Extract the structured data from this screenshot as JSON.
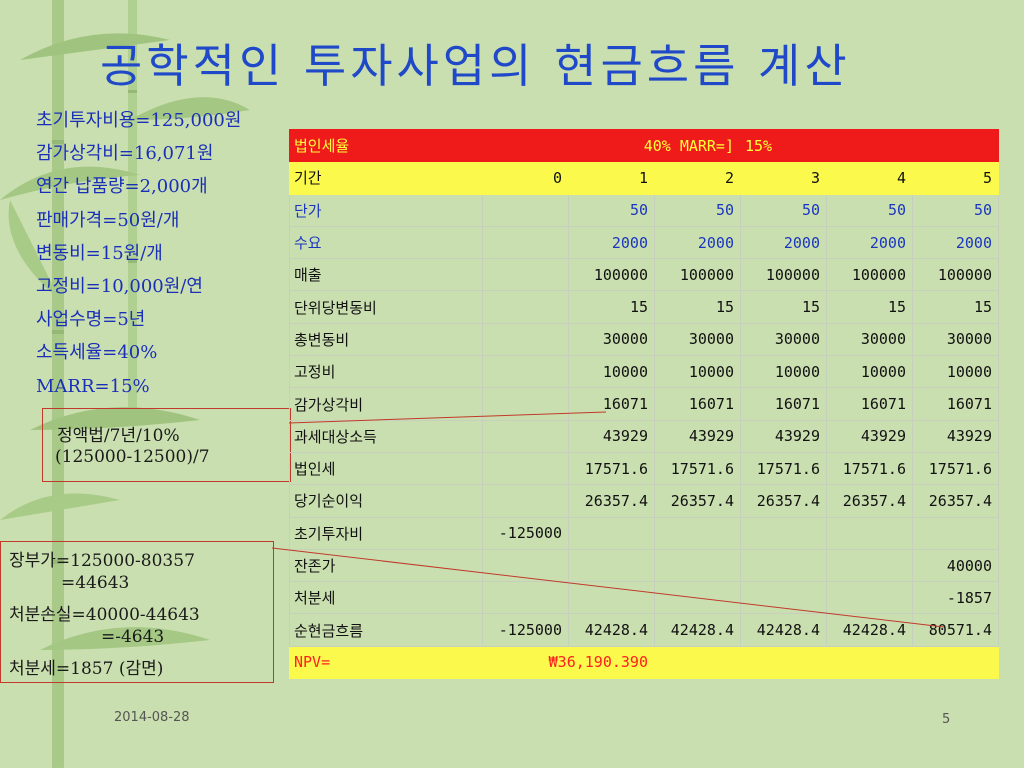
{
  "title": "공학적인 투자사업의 현금흐름 계산",
  "params": [
    "초기투자비용=125,000원",
    "감가상각비=16,071원",
    "연간 납품량=2,000개",
    "판매가격=50원/개",
    "변동비=15원/개",
    "고정비=10,000원/연",
    "사업수명=5년",
    "소득세율=40%",
    "MARR=15%"
  ],
  "note_depreciation": [
    "정액법/7년/10%",
    "(125000-12500)/7"
  ],
  "note_disposal": [
    "장부가=125000-80357",
    "=44643",
    "처분손실=40000-44643",
    "=-4643",
    "처분세=1857 (감면)"
  ],
  "table": {
    "rate_row": {
      "label": "법인세율",
      "tax_rate": "40%",
      "marr_label": "MARR=]",
      "marr_value": "15%"
    },
    "period_row": {
      "label": "기간",
      "values": [
        "0",
        "1",
        "2",
        "3",
        "4",
        "5"
      ]
    },
    "rows": [
      {
        "label": "단가",
        "values": [
          "",
          "50",
          "50",
          "50",
          "50",
          "50"
        ]
      },
      {
        "label": "수요",
        "values": [
          "",
          "2000",
          "2000",
          "2000",
          "2000",
          "2000"
        ]
      },
      {
        "label": "매출",
        "values": [
          "",
          "100000",
          "100000",
          "100000",
          "100000",
          "100000"
        ]
      },
      {
        "label": "단위당변동비",
        "values": [
          "",
          "15",
          "15",
          "15",
          "15",
          "15"
        ]
      },
      {
        "label": "총변동비",
        "values": [
          "",
          "30000",
          "30000",
          "30000",
          "30000",
          "30000"
        ]
      },
      {
        "label": "고정비",
        "values": [
          "",
          "10000",
          "10000",
          "10000",
          "10000",
          "10000"
        ]
      },
      {
        "label": "감가상각비",
        "values": [
          "",
          "16071",
          "16071",
          "16071",
          "16071",
          "16071"
        ]
      },
      {
        "label": "과세대상소득",
        "values": [
          "",
          "43929",
          "43929",
          "43929",
          "43929",
          "43929"
        ]
      },
      {
        "label": "법인세",
        "values": [
          "",
          "17571.6",
          "17571.6",
          "17571.6",
          "17571.6",
          "17571.6"
        ]
      },
      {
        "label": "당기순이익",
        "values": [
          "",
          "26357.4",
          "26357.4",
          "26357.4",
          "26357.4",
          "26357.4"
        ]
      },
      {
        "label": "초기투자비",
        "values": [
          "-125000",
          "",
          "",
          "",
          "",
          ""
        ]
      },
      {
        "label": "잔존가",
        "values": [
          "",
          "",
          "",
          "",
          "",
          "40000"
        ]
      },
      {
        "label": "처분세",
        "values": [
          "",
          "",
          "",
          "",
          "",
          "-1857"
        ]
      },
      {
        "label": "순현금흐름",
        "values": [
          "-125000",
          "42428.4",
          "42428.4",
          "42428.4",
          "42428.4",
          "80571.4"
        ]
      }
    ],
    "npv_row": {
      "label": "NPV=",
      "value": "₩36,190.390"
    }
  },
  "footer": {
    "date": "2014-08-28",
    "page": "5"
  },
  "colors": {
    "title": "#1f49c8",
    "params": "#1a2fb8",
    "header_red": "#ef1b1b",
    "header_yellow": "#fbf94b",
    "background": "#c9dfae"
  }
}
